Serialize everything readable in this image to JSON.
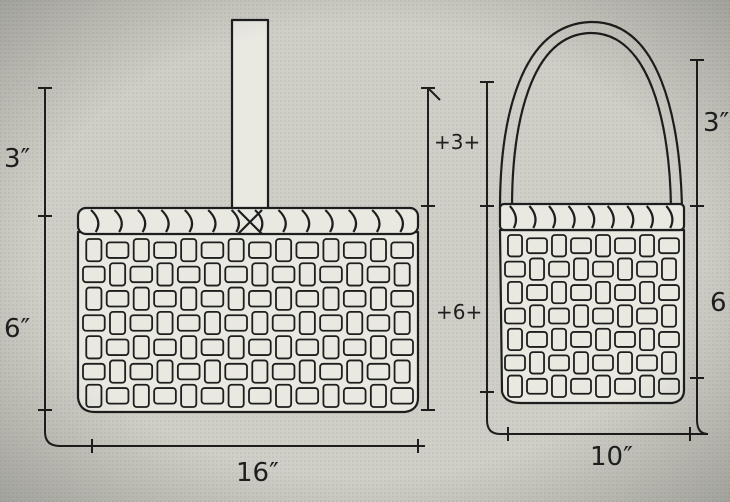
{
  "colors": {
    "paper": "#cfcfc7",
    "ink": "#1e1e1e",
    "strip": "#e9e9e2"
  },
  "front_view": {
    "height_upper": "3″",
    "height_lower": "6″",
    "width": "16″",
    "inner_upper": "+3+",
    "inner_lower": "+6+"
  },
  "side_view": {
    "height_upper": "3″",
    "height_lower": "6",
    "width": "10″"
  }
}
